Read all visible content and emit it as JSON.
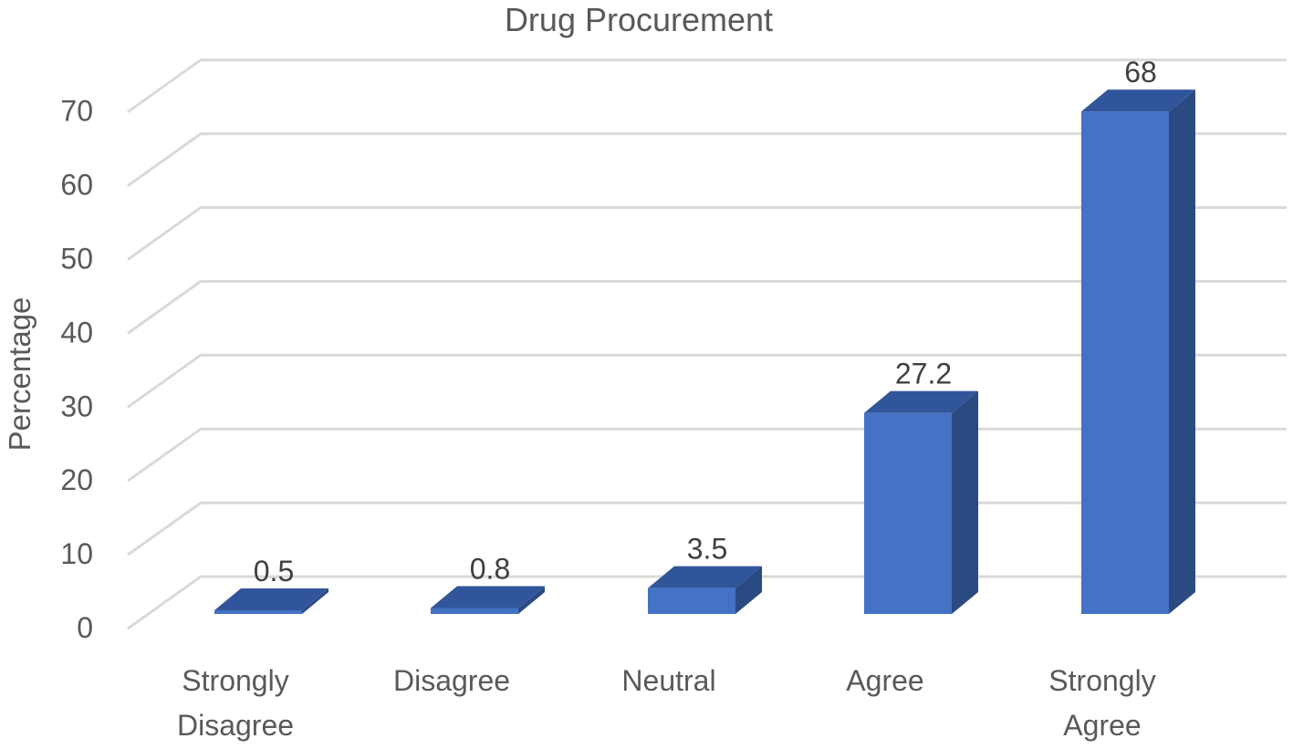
{
  "chart_data": {
    "type": "bar",
    "title": "Drug Procurement",
    "xlabel": "",
    "ylabel": "Percentage",
    "categories": [
      [
        "Strongly",
        "Disagree"
      ],
      [
        "Disagree"
      ],
      [
        "Neutral"
      ],
      [
        "Agree"
      ],
      [
        "Strongly",
        "Agree"
      ]
    ],
    "series": [
      {
        "values": [
          0.5,
          0.8,
          3.5,
          27.2,
          68
        ],
        "data_labels": [
          "0.5",
          "0.8",
          "3.5",
          "27.2",
          "68"
        ]
      }
    ],
    "ylim": [
      0,
      70
    ],
    "yticks": [
      0,
      10,
      20,
      30,
      40,
      50,
      60,
      70
    ],
    "grid": true,
    "legend": "none",
    "style": "3d-column",
    "colors": {
      "bar_front": "#4472c4",
      "bar_side": "#2c4a82",
      "bar_top": "#31559a",
      "gridline": "#d9d9d9",
      "text": "#595959",
      "data_label": "#404040"
    }
  }
}
